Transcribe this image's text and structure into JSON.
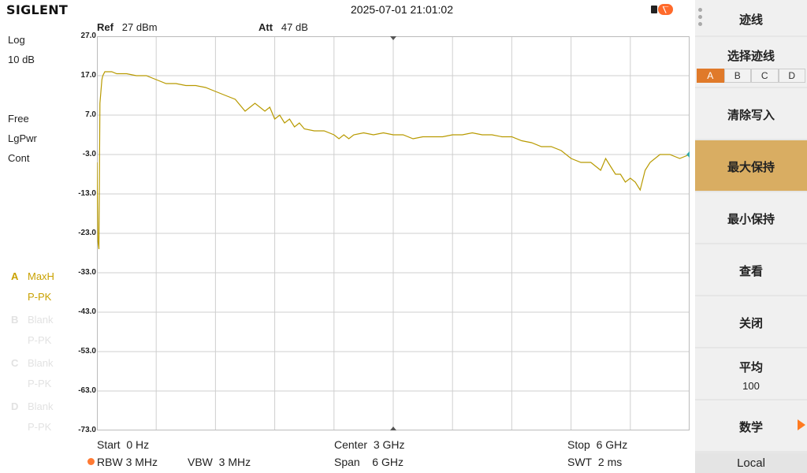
{
  "topbar": {
    "logo": "SIGLENT",
    "datetime": "2025-07-01 21:01:02",
    "usb_icon": "usb-icon"
  },
  "left": {
    "scale_type": "Log",
    "scale_div": "10 dB",
    "mode1": "Free",
    "mode2": "LgPwr",
    "mode3": "Cont",
    "traces": [
      {
        "letter": "A",
        "mode": "MaxH",
        "det": "P-PK"
      },
      {
        "letter": "B",
        "mode": "Blank",
        "det": "P-PK"
      },
      {
        "letter": "C",
        "mode": "Blank",
        "det": "P-PK"
      },
      {
        "letter": "D",
        "mode": "Blank",
        "det": "P-PK"
      }
    ]
  },
  "graph": {
    "ref_label": "Ref",
    "ref_value": "27 dBm",
    "att_label": "Att",
    "att_value": "47 dB",
    "y_ticks": [
      "27.0",
      "17.0",
      "7.0",
      "-3.0",
      "-13.0",
      "-23.0",
      "-33.0",
      "-43.0",
      "-53.0",
      "-63.0",
      "-73.0"
    ],
    "trace_color": "#b89a00"
  },
  "bottom": {
    "start_label": "Start",
    "start_value": "0 Hz",
    "center_label": "Center",
    "center_value": "3 GHz",
    "stop_label": "Stop",
    "stop_value": "6 GHz",
    "rbw_label": "RBW",
    "rbw_value": "3 MHz",
    "vbw_label": "VBW",
    "vbw_value": "3 MHz",
    "span_label": "Span",
    "span_value": "6 GHz",
    "swt_label": "SWT",
    "swt_value": "2 ms"
  },
  "menu": {
    "title": "迹线",
    "select_trace": "选择迹线",
    "trace_tabs": [
      "A",
      "B",
      "C",
      "D"
    ],
    "clear_write": "清除写入",
    "max_hold": "最大保持",
    "min_hold": "最小保持",
    "view": "查看",
    "close": "关闭",
    "average": "平均",
    "average_value": "100",
    "math": "数学",
    "local": "Local"
  },
  "chart_data": {
    "type": "line",
    "title": "",
    "xlabel": "",
    "ylabel": "",
    "x_unit": "GHz",
    "y_unit": "dBm",
    "xlim": [
      0,
      6
    ],
    "ylim": [
      -73,
      27
    ],
    "grid": true,
    "series": [
      {
        "name": "",
        "x": [
          0.0,
          0.01,
          0.02,
          0.03,
          0.05,
          0.06,
          0.08,
          0.1,
          0.15,
          0.2,
          0.3,
          0.4,
          0.5,
          0.6,
          0.7,
          0.8,
          0.9,
          1.0,
          1.1,
          1.2,
          1.3,
          1.4,
          1.5,
          1.6,
          1.7,
          1.75,
          1.8,
          1.85,
          1.9,
          1.95,
          2.0,
          2.05,
          2.1,
          2.2,
          2.3,
          2.4,
          2.45,
          2.5,
          2.55,
          2.6,
          2.7,
          2.8,
          2.9,
          3.0,
          3.1,
          3.2,
          3.3,
          3.4,
          3.5,
          3.6,
          3.7,
          3.8,
          3.9,
          4.0,
          4.1,
          4.2,
          4.3,
          4.4,
          4.5,
          4.6,
          4.7,
          4.8,
          4.9,
          5.0,
          5.1,
          5.15,
          5.2,
          5.25,
          5.3,
          5.35,
          5.4,
          5.45,
          5.5,
          5.55,
          5.6,
          5.7,
          5.8,
          5.9,
          6.0
        ],
        "y": [
          -5,
          -25,
          -27,
          10,
          16,
          17,
          18,
          18,
          18,
          17.5,
          17.5,
          17,
          17,
          16,
          15,
          15,
          14.5,
          14.5,
          14,
          13,
          12,
          11,
          8,
          10,
          8,
          9,
          6,
          7,
          5,
          6,
          4,
          5,
          3.5,
          3,
          3,
          2,
          1,
          2,
          1,
          2,
          2.5,
          2,
          2.5,
          2,
          2,
          1,
          1.5,
          1.5,
          1.5,
          2,
          2,
          2.5,
          2,
          2,
          1.5,
          1.5,
          0.5,
          0,
          -1,
          -1,
          -2,
          -4,
          -5,
          -5,
          -7,
          -4,
          -6,
          -8,
          -8,
          -10,
          -9,
          -10,
          -12,
          -7,
          -5,
          -3,
          -3,
          -4,
          -3
        ]
      }
    ]
  }
}
